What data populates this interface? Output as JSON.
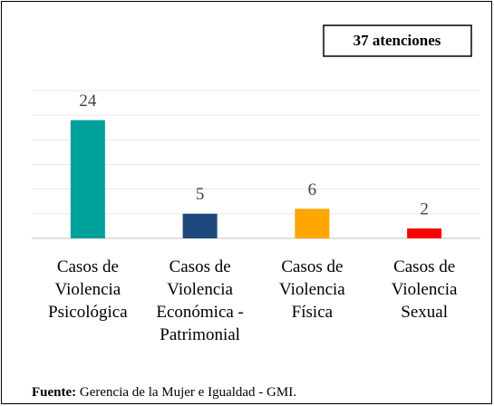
{
  "chart_data": {
    "type": "bar",
    "annotation": "37 atenciones",
    "categories": [
      "Casos de\nViolencia\nPsicológica",
      "Casos de\nViolencia\nEconómica -\nPatrimonial",
      "Casos de\nViolencia\nFísica",
      "Casos de\nViolencia\nSexual"
    ],
    "values": [
      24,
      5,
      6,
      2
    ],
    "colors": [
      "#00a19a",
      "#1f497d",
      "#ffa500",
      "#ff0000"
    ],
    "ylim": [
      0,
      30
    ],
    "yticks": [
      0,
      5,
      10,
      15,
      20,
      25,
      30
    ],
    "grid": true,
    "source": {
      "label": "Fuente:",
      "text": "Gerencia de la Mujer e Igualdad - GMI."
    }
  }
}
